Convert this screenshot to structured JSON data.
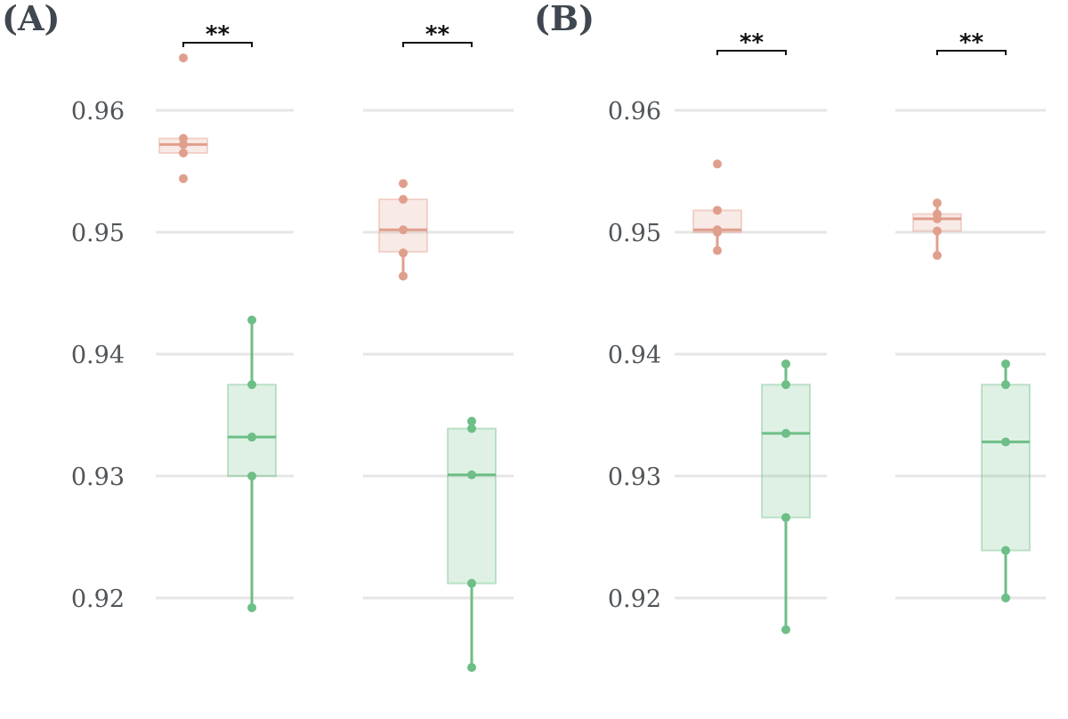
{
  "chart_data": [
    {
      "type": "box",
      "panel_label": "(A)",
      "yticks": [
        0.92,
        0.93,
        0.94,
        0.95,
        0.96
      ],
      "ytick_labels": [
        "0.92",
        "0.93",
        "0.94",
        "0.95",
        "0.96"
      ],
      "grid": true,
      "groups": [
        {
          "significance": "**",
          "series": [
            {
              "color": "#e09f8c",
              "points": [
                0.9643,
                0.9577,
                0.9572,
                0.9565,
                0.9544
              ],
              "box": {
                "q1": 0.9565,
                "median": 0.9572,
                "q3": 0.9577,
                "whisker_low": 0.9565,
                "whisker_high": 0.9577
              }
            },
            {
              "color": "#6dbe87",
              "points": [
                0.9428,
                0.9375,
                0.9332,
                0.93,
                0.9192
              ],
              "box": {
                "q1": 0.93,
                "median": 0.9332,
                "q3": 0.9375,
                "whisker_low": 0.9192,
                "whisker_high": 0.9428
              }
            }
          ]
        },
        {
          "significance": "**",
          "series": [
            {
              "color": "#e09f8c",
              "points": [
                0.954,
                0.9527,
                0.9502,
                0.9483,
                0.9464
              ],
              "box": {
                "q1": 0.9484,
                "median": 0.9502,
                "q3": 0.9527,
                "whisker_low": 0.9464,
                "whisker_high": 0.9527
              }
            },
            {
              "color": "#6dbe87",
              "points": [
                0.9345,
                0.9339,
                0.9301,
                0.9212,
                0.9143
              ],
              "box": {
                "q1": 0.9212,
                "median": 0.9301,
                "q3": 0.9339,
                "whisker_low": 0.9143,
                "whisker_high": 0.9339
              }
            }
          ]
        }
      ]
    },
    {
      "type": "box",
      "panel_label": "(B)",
      "yticks": [
        0.92,
        0.93,
        0.94,
        0.95,
        0.96
      ],
      "ytick_labels": [
        "0.92",
        "0.93",
        "0.94",
        "0.95",
        "0.96"
      ],
      "grid": true,
      "groups": [
        {
          "significance": "**",
          "series": [
            {
              "color": "#e09f8c",
              "points": [
                0.9556,
                0.9518,
                0.9502,
                0.95,
                0.9485
              ],
              "box": {
                "q1": 0.95,
                "median": 0.9502,
                "q3": 0.9518,
                "whisker_low": 0.9485,
                "whisker_high": 0.9518
              }
            },
            {
              "color": "#6dbe87",
              "points": [
                0.9392,
                0.9375,
                0.9335,
                0.9266,
                0.9174
              ],
              "box": {
                "q1": 0.9266,
                "median": 0.9335,
                "q3": 0.9375,
                "whisker_low": 0.9174,
                "whisker_high": 0.9392
              }
            }
          ]
        },
        {
          "significance": "**",
          "series": [
            {
              "color": "#e09f8c",
              "points": [
                0.9524,
                0.9515,
                0.9511,
                0.9501,
                0.9481
              ],
              "box": {
                "q1": 0.9501,
                "median": 0.9511,
                "q3": 0.9515,
                "whisker_low": 0.9481,
                "whisker_high": 0.9524
              }
            },
            {
              "color": "#6dbe87",
              "points": [
                0.9392,
                0.9375,
                0.9328,
                0.9239,
                0.92
              ],
              "box": {
                "q1": 0.9239,
                "median": 0.9328,
                "q3": 0.9375,
                "whisker_low": 0.92,
                "whisker_high": 0.9392
              }
            }
          ]
        }
      ]
    }
  ]
}
